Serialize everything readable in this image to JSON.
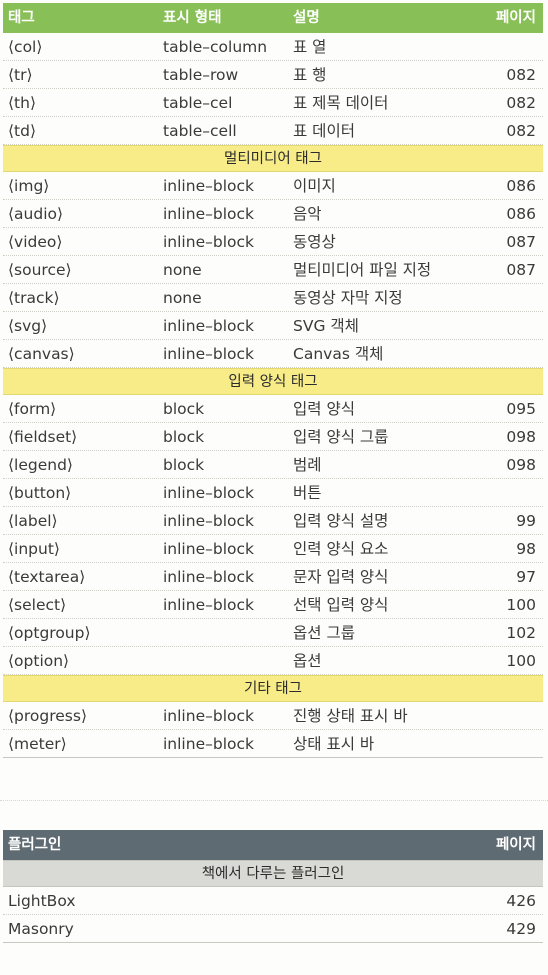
{
  "html_table": {
    "headers": [
      "태그",
      "표시 형태",
      "설명",
      "페이지"
    ],
    "groups": [
      {
        "title": "",
        "rows": [
          [
            "⟨col⟩",
            "table–column",
            "표 열",
            ""
          ],
          [
            "⟨tr⟩",
            "table–row",
            "표 행",
            "082"
          ],
          [
            "⟨th⟩",
            "table–cel",
            "표 제목 데이터",
            "082"
          ],
          [
            "⟨td⟩",
            "table–cell",
            "표 데이터",
            "082"
          ]
        ]
      },
      {
        "title": "멀티미디어 태그",
        "rows": [
          [
            "⟨img⟩",
            "inline–block",
            "이미지",
            "086"
          ],
          [
            "⟨audio⟩",
            "inline–block",
            "음악",
            "086"
          ],
          [
            "⟨video⟩",
            "inline–block",
            "동영상",
            "087"
          ],
          [
            "⟨source⟩",
            "none",
            "멀티미디어 파일 지정",
            "087"
          ],
          [
            "⟨track⟩",
            "none",
            "동영상 자막 지정",
            ""
          ],
          [
            "⟨svg⟩",
            "inline–block",
            "SVG 객체",
            ""
          ],
          [
            "⟨canvas⟩",
            "inline–block",
            "Canvas 객체",
            ""
          ]
        ]
      },
      {
        "title": "입력 양식 태그",
        "rows": [
          [
            "⟨form⟩",
            "block",
            "입력 양식",
            "095"
          ],
          [
            "⟨fieldset⟩",
            "block",
            "입력 양식 그룹",
            "098"
          ],
          [
            "⟨legend⟩",
            "block",
            "범례",
            "098"
          ],
          [
            "⟨button⟩",
            "inline–block",
            "버튼",
            ""
          ],
          [
            "⟨label⟩",
            "inline–block",
            "입력 양식 설명",
            "99"
          ],
          [
            "⟨input⟩",
            "inline–block",
            "인력 양식 요소",
            "98"
          ],
          [
            "⟨textarea⟩",
            "inline–block",
            "문자 입력 양식",
            "97"
          ],
          [
            "⟨select⟩",
            "inline–block",
            "선택 입력 양식",
            "100"
          ],
          [
            "⟨optgroup⟩",
            "",
            "옵션 그룹",
            "102"
          ],
          [
            "⟨option⟩",
            "",
            "옵션",
            "100"
          ]
        ]
      },
      {
        "title": "기타 태그",
        "rows": [
          [
            "⟨progress⟩",
            "inline–block",
            "진행 상태 표시 바",
            ""
          ],
          [
            "⟨meter⟩",
            "inline–block",
            "상태 표시 바",
            ""
          ]
        ]
      }
    ]
  },
  "plugin_table": {
    "headers": [
      "플러그인",
      "페이지"
    ],
    "section_title": "책에서 다루는 플러그인",
    "rows": [
      [
        "LightBox",
        "426"
      ],
      [
        "Masonry",
        "429"
      ]
    ]
  }
}
